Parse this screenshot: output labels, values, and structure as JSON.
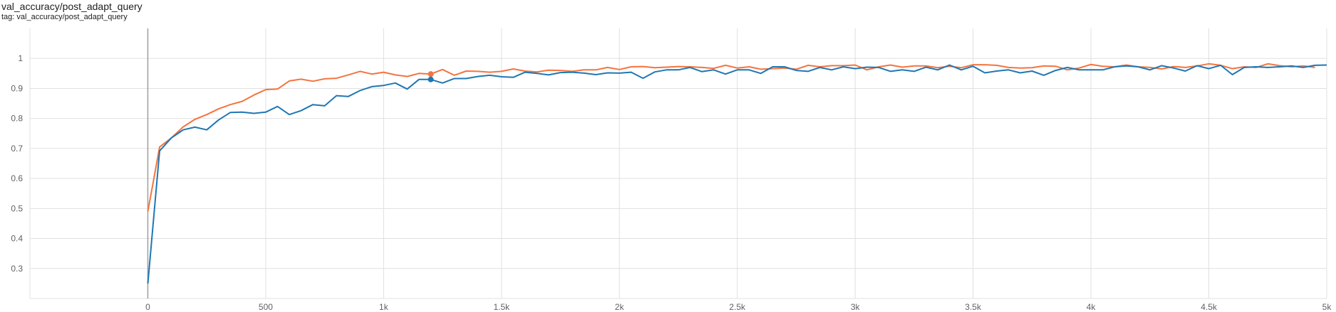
{
  "card": {
    "title": "val_accuracy/post_adapt_query",
    "tag": "tag: val_accuracy/post_adapt_query"
  },
  "chart_data": {
    "type": "line",
    "title": "val_accuracy/post_adapt_query",
    "xlabel": "",
    "ylabel": "",
    "xlim": [
      -500,
      5000
    ],
    "ylim": [
      0.2,
      1.1
    ],
    "x_ticks": [
      0,
      500,
      1000,
      1500,
      2000,
      2500,
      3000,
      3500,
      4000,
      4500,
      5000
    ],
    "x_tick_labels": [
      "0",
      "500",
      "1k",
      "1.5k",
      "2k",
      "2.5k",
      "3k",
      "3.5k",
      "4k",
      "4.5k",
      "5k"
    ],
    "y_ticks": [
      0.3,
      0.4,
      0.5,
      0.6,
      0.7,
      0.8,
      0.9,
      1.0
    ],
    "y_tick_labels": [
      "0.3",
      "0.4",
      "0.5",
      "0.6",
      "0.7",
      "0.8",
      "0.9",
      "1"
    ],
    "grid": true,
    "colors": {
      "orange": "#f4743f",
      "blue": "#1f77b4",
      "grid": "#e0e0e0",
      "axis": "#9e9e9e"
    },
    "series": [
      {
        "color": "#f4743f",
        "x": [
          0,
          50,
          100,
          150,
          200,
          250,
          300,
          350,
          400,
          450,
          500,
          550,
          600,
          650,
          700,
          750,
          800,
          850,
          900,
          950,
          1000,
          1050,
          1100,
          1150,
          1200,
          1250,
          1300,
          1350,
          1400,
          1450,
          1500,
          1550,
          1600,
          1650,
          1700,
          1750,
          1800,
          1850,
          1900,
          1950,
          2000,
          2050,
          2100,
          2150,
          2200,
          2250,
          2300,
          2350,
          2400,
          2450,
          2500,
          2550,
          2600,
          2650,
          2700,
          2750,
          2800,
          2850,
          2900,
          2950,
          3000,
          3050,
          3100,
          3150,
          3200,
          3250,
          3300,
          3350,
          3400,
          3450,
          3500,
          3550,
          3600,
          3650,
          3700,
          3750,
          3800,
          3850,
          3900,
          3950,
          4000,
          4050,
          4100,
          4150,
          4200,
          4250,
          4300,
          4350,
          4400,
          4450,
          4500,
          4550,
          4600,
          4650,
          4700,
          4750,
          4800,
          4850,
          4900,
          4950
        ],
        "y": [
          0.49,
          0.705,
          0.735,
          0.772,
          0.797,
          0.813,
          0.832,
          0.846,
          0.857,
          0.878,
          0.896,
          0.898,
          0.925,
          0.931,
          0.924,
          0.932,
          0.934,
          0.945,
          0.957,
          0.948,
          0.954,
          0.945,
          0.94,
          0.95,
          0.948,
          0.963,
          0.944,
          0.958,
          0.957,
          0.954,
          0.957,
          0.965,
          0.958,
          0.955,
          0.961,
          0.96,
          0.957,
          0.962,
          0.962,
          0.97,
          0.963,
          0.972,
          0.973,
          0.969,
          0.971,
          0.973,
          0.972,
          0.97,
          0.967,
          0.977,
          0.968,
          0.972,
          0.964,
          0.966,
          0.968,
          0.964,
          0.977,
          0.972,
          0.976,
          0.976,
          0.978,
          0.962,
          0.972,
          0.978,
          0.971,
          0.975,
          0.975,
          0.969,
          0.974,
          0.969,
          0.979,
          0.979,
          0.977,
          0.97,
          0.968,
          0.969,
          0.975,
          0.974,
          0.962,
          0.968,
          0.98,
          0.974,
          0.972,
          0.978,
          0.972,
          0.97,
          0.965,
          0.973,
          0.97,
          0.975,
          0.982,
          0.977,
          0.966,
          0.972,
          0.97,
          0.982,
          0.976,
          0.972,
          0.975,
          0.97
        ]
      },
      {
        "color": "#1f77b4",
        "x": [
          0,
          50,
          100,
          150,
          200,
          250,
          300,
          350,
          400,
          450,
          500,
          550,
          600,
          650,
          700,
          750,
          800,
          850,
          900,
          950,
          1000,
          1050,
          1100,
          1150,
          1200,
          1250,
          1300,
          1350,
          1400,
          1450,
          1500,
          1550,
          1600,
          1650,
          1700,
          1750,
          1800,
          1850,
          1900,
          1950,
          2000,
          2050,
          2100,
          2150,
          2200,
          2250,
          2300,
          2350,
          2400,
          2450,
          2500,
          2550,
          2600,
          2650,
          2700,
          2750,
          2800,
          2850,
          2900,
          2950,
          3000,
          3050,
          3100,
          3150,
          3200,
          3250,
          3300,
          3350,
          3400,
          3450,
          3500,
          3550,
          3600,
          3650,
          3700,
          3750,
          3800,
          3850,
          3900,
          3950,
          4000,
          4050,
          4100,
          4150,
          4200,
          4250,
          4300,
          4350,
          4400,
          4450,
          4500,
          4550,
          4600,
          4650,
          4700,
          4750,
          4800,
          4850,
          4900,
          4950,
          5000
        ],
        "y": [
          0.25,
          0.692,
          0.735,
          0.762,
          0.771,
          0.762,
          0.795,
          0.82,
          0.821,
          0.817,
          0.821,
          0.84,
          0.813,
          0.826,
          0.846,
          0.842,
          0.876,
          0.873,
          0.893,
          0.906,
          0.91,
          0.918,
          0.898,
          0.93,
          0.93,
          0.918,
          0.933,
          0.933,
          0.94,
          0.944,
          0.939,
          0.937,
          0.954,
          0.95,
          0.945,
          0.953,
          0.954,
          0.951,
          0.946,
          0.952,
          0.951,
          0.954,
          0.934,
          0.955,
          0.962,
          0.962,
          0.97,
          0.956,
          0.962,
          0.948,
          0.962,
          0.962,
          0.95,
          0.972,
          0.972,
          0.96,
          0.957,
          0.97,
          0.962,
          0.972,
          0.966,
          0.971,
          0.97,
          0.957,
          0.962,
          0.957,
          0.971,
          0.962,
          0.978,
          0.962,
          0.974,
          0.952,
          0.958,
          0.962,
          0.952,
          0.958,
          0.944,
          0.96,
          0.97,
          0.962,
          0.962,
          0.962,
          0.972,
          0.975,
          0.972,
          0.962,
          0.976,
          0.968,
          0.958,
          0.976,
          0.966,
          0.977,
          0.946,
          0.97,
          0.972,
          0.97,
          0.972,
          0.975,
          0.97,
          0.977,
          0.978
        ]
      }
    ],
    "markers": [
      {
        "x": 1200,
        "y": 0.948,
        "color": "#f4743f"
      },
      {
        "x": 1200,
        "y": 0.93,
        "color": "#1f77b4"
      }
    ]
  }
}
